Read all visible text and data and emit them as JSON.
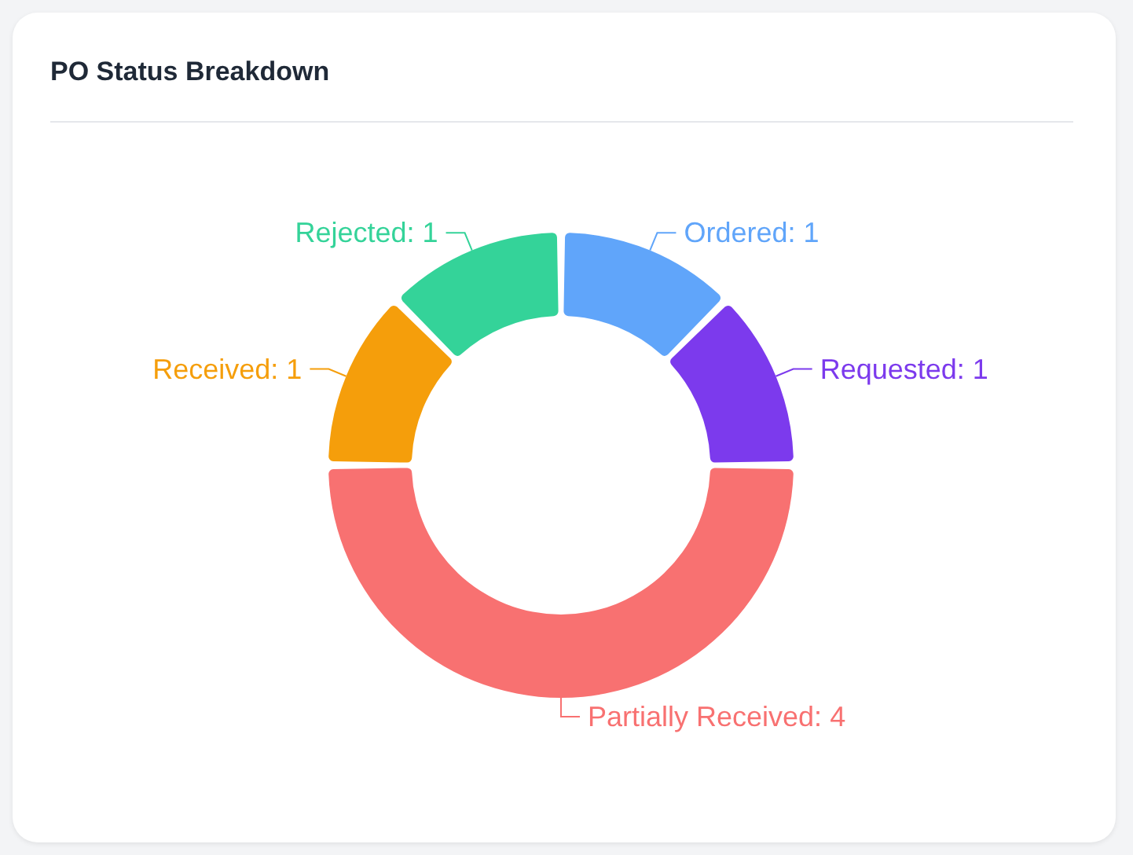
{
  "chart_data": {
    "type": "donut",
    "title": "PO Status Breakdown",
    "categories": [
      "Ordered",
      "Requested",
      "Partially Received",
      "Received",
      "Rejected"
    ],
    "values": [
      1,
      1,
      4,
      1,
      1
    ],
    "colors": [
      "#60a5fa",
      "#7c3aed",
      "#f87171",
      "#f59e0b",
      "#34d399"
    ],
    "value_labels": [
      ": 1",
      ": 1",
      ": 4",
      ": 1",
      ": 1"
    ],
    "legend": false
  }
}
